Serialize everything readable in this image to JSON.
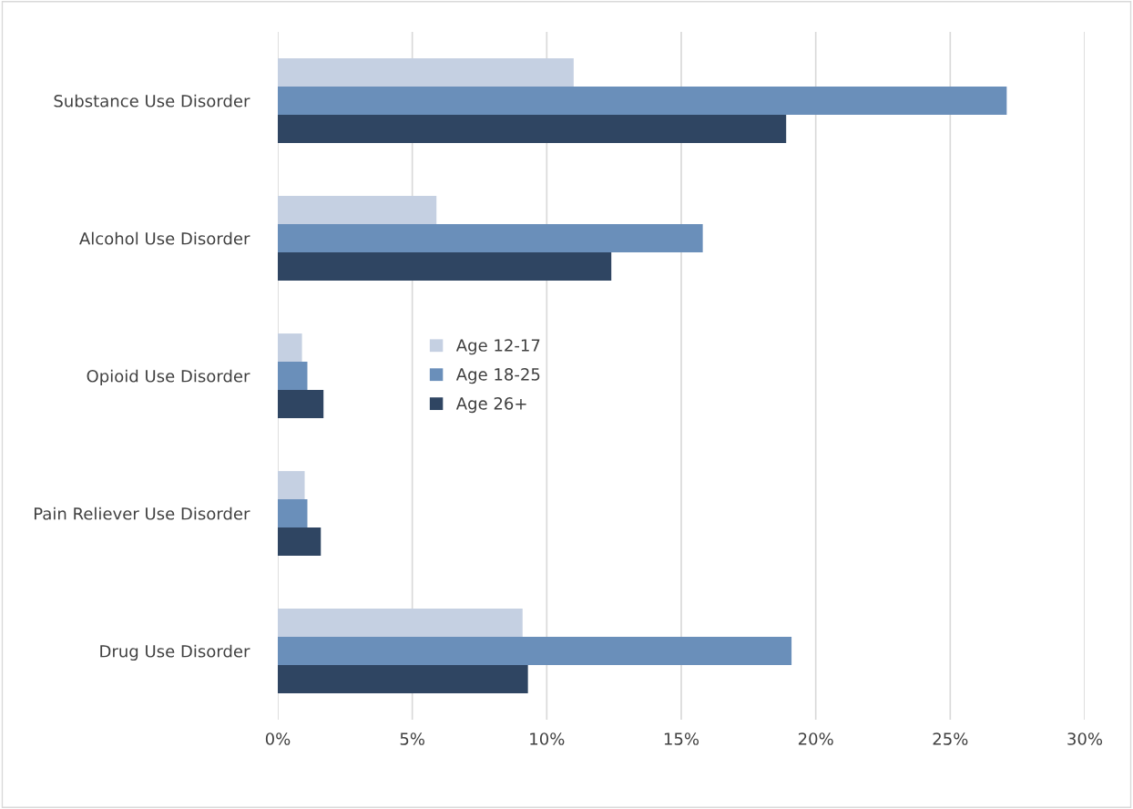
{
  "chart_data": {
    "type": "bar",
    "orientation": "horizontal",
    "categories": [
      "Substance Use Disorder",
      "Alcohol Use Disorder",
      "Opioid Use Disorder",
      "Pain Reliever Use Disorder",
      "Drug Use Disorder"
    ],
    "series": [
      {
        "name": "Age 12-17",
        "color": "#c5d0e2",
        "values": [
          11.0,
          5.9,
          0.9,
          1.0,
          9.1
        ]
      },
      {
        "name": "Age 18-25",
        "color": "#6a8fba",
        "values": [
          27.1,
          15.8,
          1.1,
          1.1,
          19.1
        ]
      },
      {
        "name": "Age 26+",
        "color": "#2f4562",
        "values": [
          18.9,
          12.4,
          1.7,
          1.6,
          9.3
        ]
      }
    ],
    "xlim": [
      0,
      30
    ],
    "xticks": [
      {
        "value": 0,
        "label": "0%"
      },
      {
        "value": 5,
        "label": "5%"
      },
      {
        "value": 10,
        "label": "10%"
      },
      {
        "value": 15,
        "label": "15%"
      },
      {
        "value": 20,
        "label": "20%"
      },
      {
        "value": 25,
        "label": "25%"
      },
      {
        "value": 30,
        "label": "30%"
      }
    ],
    "grid": "x",
    "legend": "center left"
  }
}
